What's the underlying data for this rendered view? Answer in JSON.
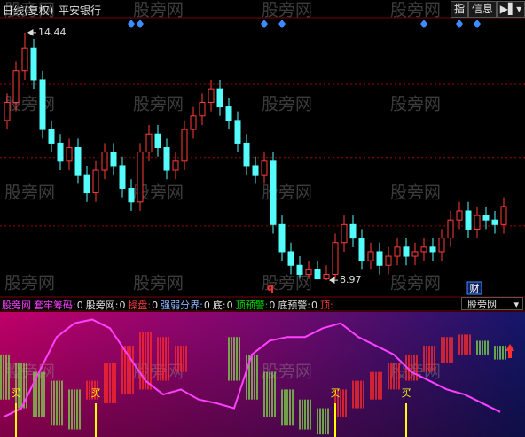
{
  "header": {
    "period": "日线(复权)",
    "stock": "平安银行",
    "buttons": [
      "指",
      "信息"
    ]
  },
  "watermark": "股旁网",
  "chart_data": [
    {
      "type": "candlestick",
      "open": [
        12.5,
        12.9,
        13.6,
        14.1,
        13.4,
        12.3,
        12.0,
        11.6,
        11.9,
        11.3,
        10.9,
        11.4,
        11.8,
        11.5,
        11.0,
        10.7,
        11.8,
        12.2,
        11.9,
        11.4,
        11.6,
        12.3,
        12.6,
        12.9,
        13.2,
        12.8,
        12.5,
        12.0,
        11.5,
        11.3,
        11.6,
        10.2,
        9.6,
        9.3,
        9.1,
        9.2,
        9.0,
        9.1,
        9.8,
        10.2,
        9.9,
        9.4,
        9.6,
        9.3,
        9.5,
        9.7,
        9.5,
        9.6,
        9.7,
        9.6,
        9.9,
        10.3,
        10.5,
        10.1,
        10.4,
        10.3,
        10.2
      ],
      "high": [
        13.1,
        13.8,
        14.44,
        14.3,
        13.6,
        12.5,
        12.2,
        12.1,
        12.1,
        11.5,
        11.6,
        12.0,
        12.0,
        11.7,
        11.2,
        12.0,
        12.4,
        12.4,
        12.1,
        11.8,
        12.5,
        12.8,
        13.1,
        13.4,
        13.4,
        13.0,
        12.7,
        12.2,
        11.7,
        11.8,
        11.8,
        10.4,
        9.8,
        9.5,
        9.4,
        9.4,
        9.3,
        10.0,
        10.4,
        10.4,
        10.1,
        9.8,
        9.8,
        9.7,
        9.9,
        9.9,
        9.8,
        9.9,
        9.9,
        10.1,
        10.5,
        10.7,
        10.7,
        10.6,
        10.6,
        10.5,
        10.8
      ],
      "low": [
        12.3,
        12.7,
        13.4,
        13.2,
        12.1,
        11.8,
        11.4,
        11.4,
        11.1,
        10.7,
        10.7,
        11.2,
        11.3,
        10.8,
        10.5,
        10.5,
        11.6,
        11.7,
        11.2,
        11.2,
        11.4,
        12.1,
        12.4,
        12.7,
        12.6,
        12.3,
        11.8,
        11.3,
        11.1,
        11.1,
        10.0,
        9.4,
        9.1,
        9.0,
        9.0,
        8.99,
        8.97,
        9.0,
        9.6,
        9.7,
        9.2,
        9.2,
        9.1,
        9.1,
        9.3,
        9.3,
        9.3,
        9.4,
        9.4,
        9.4,
        9.7,
        10.1,
        9.9,
        9.9,
        10.1,
        10.0,
        10.0
      ],
      "close": [
        12.9,
        13.6,
        14.1,
        13.4,
        12.3,
        12.0,
        11.6,
        11.9,
        11.3,
        10.9,
        11.4,
        11.8,
        11.5,
        11.0,
        10.7,
        11.8,
        12.2,
        11.9,
        11.4,
        11.6,
        12.3,
        12.6,
        12.9,
        13.2,
        12.8,
        12.5,
        12.0,
        11.5,
        11.3,
        11.6,
        10.2,
        9.6,
        9.3,
        9.1,
        9.2,
        9.0,
        9.1,
        9.8,
        10.2,
        9.9,
        9.4,
        9.6,
        9.3,
        9.5,
        9.7,
        9.5,
        9.6,
        9.7,
        9.6,
        9.9,
        10.3,
        10.5,
        10.1,
        10.4,
        10.3,
        10.2,
        10.6
      ],
      "up_color": "#ff3c3c",
      "down_color": "#54fcfc",
      "ylim": [
        8.6,
        14.77
      ],
      "gridlines": [
        13.3,
        11.68,
        10.17
      ],
      "grid_color": "#a00000",
      "max_label": 14.44,
      "min_label": 8.97,
      "diamond_signals": [
        14,
        15,
        29,
        31,
        47,
        51,
        53
      ],
      "diamond_color": "#3c8cff",
      "finance_label": "财",
      "q_marker": "q"
    },
    {
      "type": "indicator",
      "name": "股旁网",
      "legend": [
        {
          "name": "套牢筹码:",
          "value": 0,
          "color": "#ff40ff"
        },
        {
          "name": "股旁网:",
          "value": 0,
          "color": "#e0e0e0"
        },
        {
          "name": "操盘:",
          "value": 0,
          "color": "#ff3c3c"
        },
        {
          "name": "强弱分界:",
          "value": 0,
          "color": "#8cb4ff"
        },
        {
          "name": "底:",
          "value": 0,
          "color": "#e0e0e0"
        },
        {
          "name": "顶预警:",
          "value": 0,
          "color": "#00e000"
        },
        {
          "name": "底预警:",
          "value": 0,
          "color": "#e0e0e0"
        },
        {
          "name": "顶:",
          "color": "#ff3c3c"
        }
      ],
      "ylim": [
        0,
        100
      ],
      "line": {
        "color": "#ff40ff",
        "values": [
          16,
          23,
          52,
          80,
          91,
          94,
          87,
          66,
          45,
          34,
          38,
          30,
          27,
          23,
          66,
          77,
          80,
          80,
          87,
          91,
          80,
          73,
          66,
          52,
          45,
          38,
          34,
          27,
          20
        ]
      },
      "bars": {
        "top": [
          66,
          59,
          52,
          45,
          38,
          45,
          59,
          73,
          84,
          80,
          73,
          null,
          null,
          80,
          66,
          52,
          38,
          30,
          23,
          38,
          45,
          52,
          59,
          66,
          73,
          80,
          82,
          77,
          73
        ],
        "bottom": [
          30,
          23,
          16,
          9,
          6,
          30,
          27,
          34,
          38,
          45,
          52,
          null,
          null,
          45,
          30,
          16,
          9,
          6,
          2,
          16,
          23,
          30,
          38,
          45,
          52,
          59,
          66,
          66,
          62
        ],
        "colors": [
          "#7cd44c",
          "#7cd44c",
          "#7cd44c",
          "#7cd44c",
          "#7cd44c",
          "#ff2a2a",
          "#ff2a2a",
          "#ff2a2a",
          "#ff2a2a",
          "#ff2a2a",
          "#ff2a2a",
          null,
          null,
          "#7cd44c",
          "#7cd44c",
          "#7cd44c",
          "#7cd44c",
          "#7cd44c",
          "#7cd44c",
          "#ff2a2a",
          "#ff2a2a",
          "#ff2a2a",
          "#ff2a2a",
          "#ff2a2a",
          "#ff2a2a",
          "#ff2a2a",
          "#ff2a2a",
          "#7cd44c",
          "#7cd44c"
        ]
      },
      "buy_label": "买",
      "buy_signals": [
        1,
        10,
        37,
        45
      ],
      "buy_color": "#ffff00",
      "selector": "股旁网"
    }
  ]
}
